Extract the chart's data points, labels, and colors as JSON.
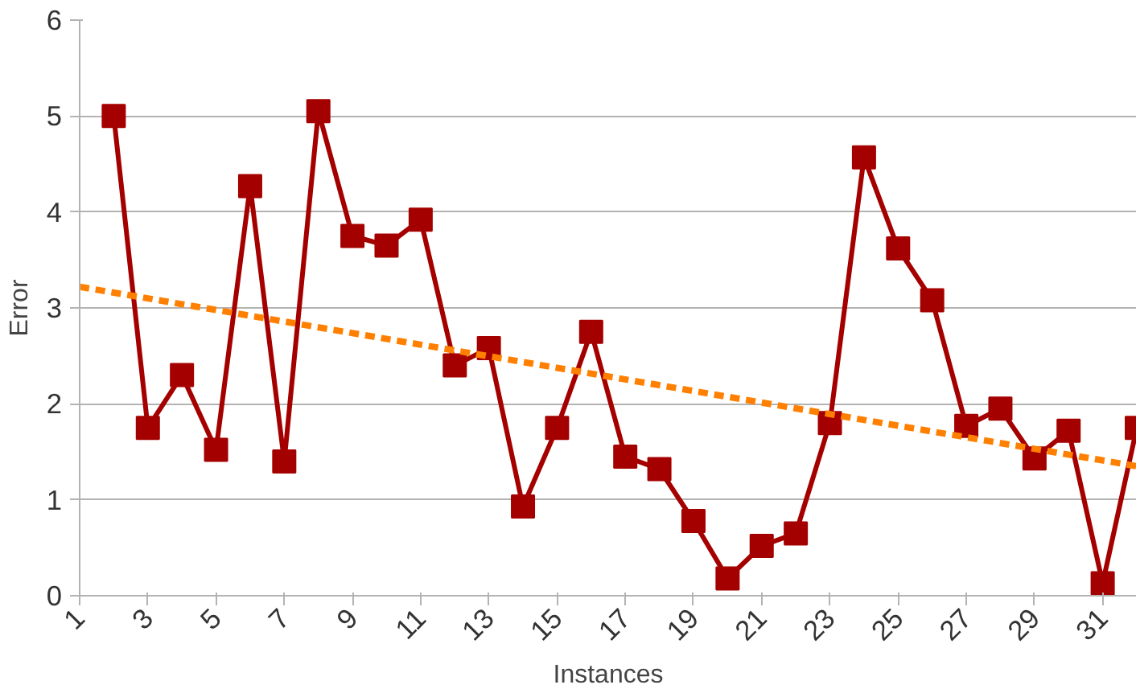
{
  "chart_data": {
    "type": "line",
    "xlabel": "Instances",
    "ylabel": "Error",
    "xlim": [
      1,
      32
    ],
    "xticks": [
      1,
      3,
      5,
      7,
      9,
      11,
      13,
      15,
      17,
      19,
      21,
      23,
      25,
      27,
      29,
      31
    ],
    "ylim": [
      0,
      6
    ],
    "yticks": [
      0,
      1,
      2,
      3,
      4,
      5,
      6
    ],
    "grid": "y",
    "x": [
      2,
      3,
      4,
      5,
      6,
      7,
      8,
      9,
      10,
      11,
      12,
      13,
      14,
      15,
      16,
      17,
      18,
      19,
      20,
      21,
      22,
      23,
      24,
      25,
      26,
      27,
      28,
      29,
      30,
      31,
      32
    ],
    "series": [
      {
        "color": "#a50000",
        "marker": "square",
        "line_style": "solid",
        "values": [
          5.0,
          1.75,
          2.3,
          1.52,
          4.27,
          1.4,
          5.05,
          3.75,
          3.65,
          3.92,
          2.4,
          2.58,
          0.93,
          1.75,
          2.75,
          1.45,
          1.32,
          0.78,
          0.18,
          0.52,
          0.65,
          1.8,
          4.57,
          3.62,
          3.08,
          1.77,
          1.95,
          1.43,
          1.72,
          0.13,
          1.75
        ]
      },
      {
        "type": "line",
        "color": "#ff8000",
        "marker": "none",
        "line_style": "dashed",
        "x": [
          1,
          32
        ],
        "values": [
          3.22,
          1.35
        ]
      }
    ]
  }
}
